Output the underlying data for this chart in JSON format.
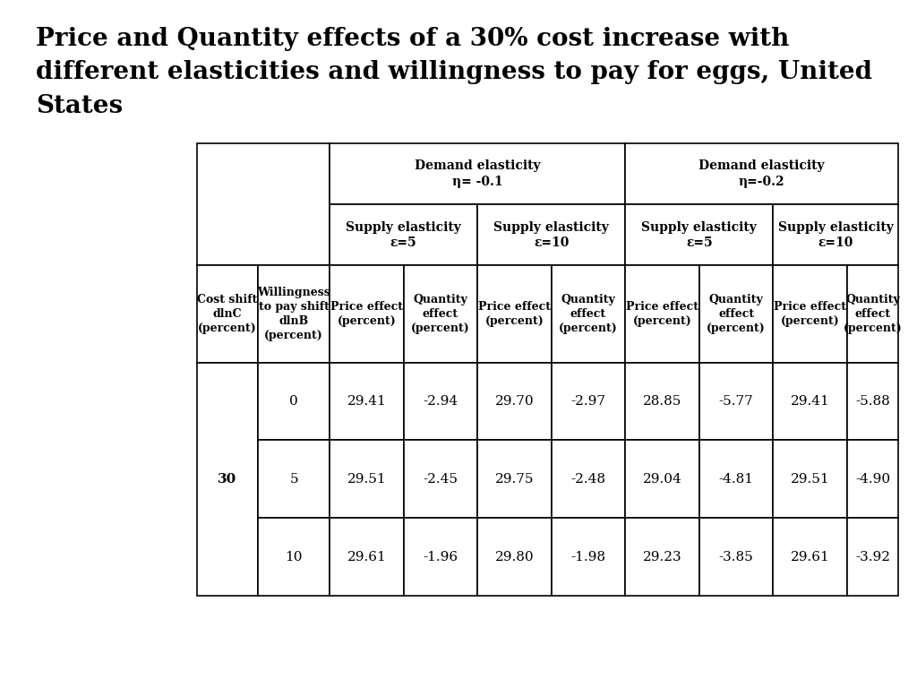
{
  "title_line1": "Price and Quantity effects of a 30% cost increase with",
  "title_line2": "different elasticities and willingness to pay for eggs, United",
  "title_line3": "States",
  "title_fontsize": 20,
  "title_fontweight": "bold",
  "background_color": "#ffffff",
  "demand_headers": [
    "Demand elasticity\nη= -0.1",
    "Demand elasticity\nη=-0.2"
  ],
  "supply_headers": [
    "Supply elasticity\nε=5",
    "Supply elasticity\nε=10",
    "Supply elasticity\nε=5",
    "Supply elasticity\nε=10"
  ],
  "col_headers": [
    "Cost shift\ndlnC\n(percent)",
    "Willingness\nto pay shift\ndlnB\n(percent)",
    "Price effect\n(percent)",
    "Quantity\neffect\n(percent)",
    "Price effect\n(percent)",
    "Quantity\neffect\n(percent)",
    "Price effect\n(percent)",
    "Quantity\neffect\n(percent)",
    "Price effect\n(percent)",
    "Quantity\neffect\n(percent)"
  ],
  "data_rows": [
    [
      30,
      0,
      29.41,
      -2.94,
      29.7,
      -2.97,
      28.85,
      -5.77,
      29.41,
      -5.88
    ],
    [
      30,
      5,
      29.51,
      -2.45,
      29.75,
      -2.48,
      29.04,
      -4.81,
      29.51,
      -4.9
    ],
    [
      30,
      10,
      29.61,
      -1.96,
      29.8,
      -1.98,
      29.23,
      -3.85,
      29.61,
      -3.92
    ]
  ],
  "header_fontsize": 10,
  "data_fontsize": 11,
  "col_header_fontsize": 9
}
